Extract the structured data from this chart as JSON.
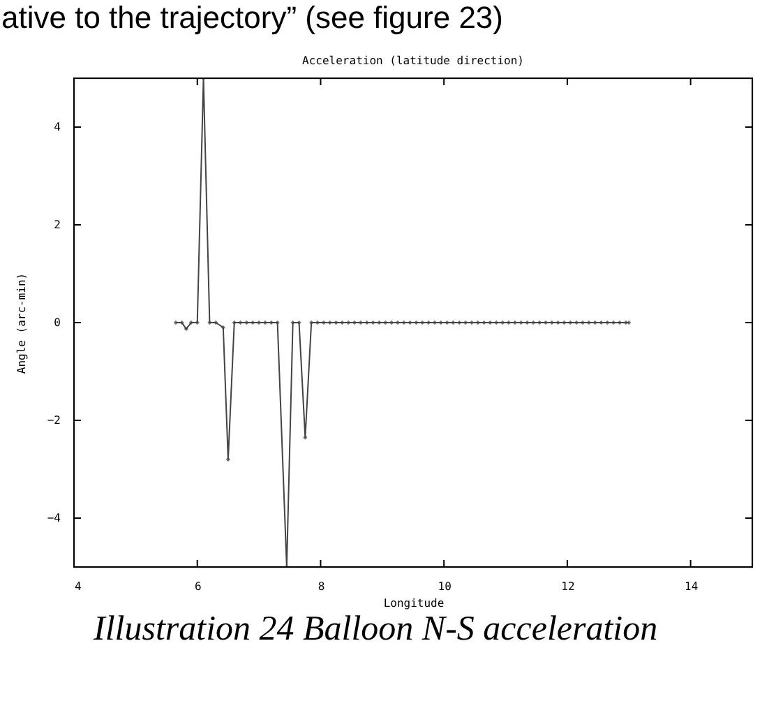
{
  "chart_data": {
    "type": "line",
    "title": "Acceleration (latitude direction)",
    "xlabel": "Longitude",
    "ylabel": "Angle (arc-min)",
    "annotations": [
      "ative to the trajectory” (see figure 23)",
      "Illustration 24 Balloon N-S acceleration"
    ],
    "xlim": [
      4,
      15
    ],
    "ylim": [
      -5,
      5
    ],
    "xticks": [
      4,
      6,
      8,
      10,
      12,
      14
    ],
    "yticks": [
      -4,
      -2,
      0,
      2,
      4
    ],
    "marker": "diamond",
    "line_style": "solid",
    "series": [
      {
        "color": "#444444",
        "x": [
          5.65,
          5.75,
          5.82,
          5.9,
          6.0,
          6.1,
          6.2,
          6.3,
          6.42,
          6.5,
          6.6,
          6.7,
          6.8,
          6.9,
          7.0,
          7.1,
          7.2,
          7.3,
          7.45,
          7.55,
          7.65,
          7.75,
          7.85,
          7.95,
          8.05,
          8.15,
          8.25,
          8.35,
          8.45,
          8.55,
          8.65,
          8.75,
          8.85,
          8.95,
          9.05,
          9.15,
          9.25,
          9.35,
          9.45,
          9.55,
          9.65,
          9.75,
          9.85,
          9.95,
          10.05,
          10.15,
          10.25,
          10.35,
          10.45,
          10.55,
          10.65,
          10.75,
          10.85,
          10.95,
          11.05,
          11.15,
          11.25,
          11.35,
          11.45,
          11.55,
          11.65,
          11.75,
          11.85,
          11.95,
          12.05,
          12.15,
          12.25,
          12.35,
          12.45,
          12.55,
          12.65,
          12.75,
          12.85,
          12.95,
          13.0
        ],
        "values": [
          0,
          0,
          -0.13,
          0,
          0,
          5,
          0,
          0,
          -0.1,
          -2.8,
          0,
          0,
          0,
          0,
          0,
          0,
          0,
          0,
          -5,
          0,
          0,
          -2.35,
          0,
          0,
          0,
          0,
          0,
          0,
          0,
          0,
          0,
          0,
          0,
          0,
          0,
          0,
          0,
          0,
          0,
          0,
          0,
          0,
          0,
          0,
          0,
          0,
          0,
          0,
          0,
          0,
          0,
          0,
          0,
          0,
          0,
          0,
          0,
          0,
          0,
          0,
          0,
          0,
          0,
          0,
          0,
          0,
          0,
          0,
          0,
          0,
          0,
          0,
          0,
          0,
          0
        ]
      }
    ]
  }
}
